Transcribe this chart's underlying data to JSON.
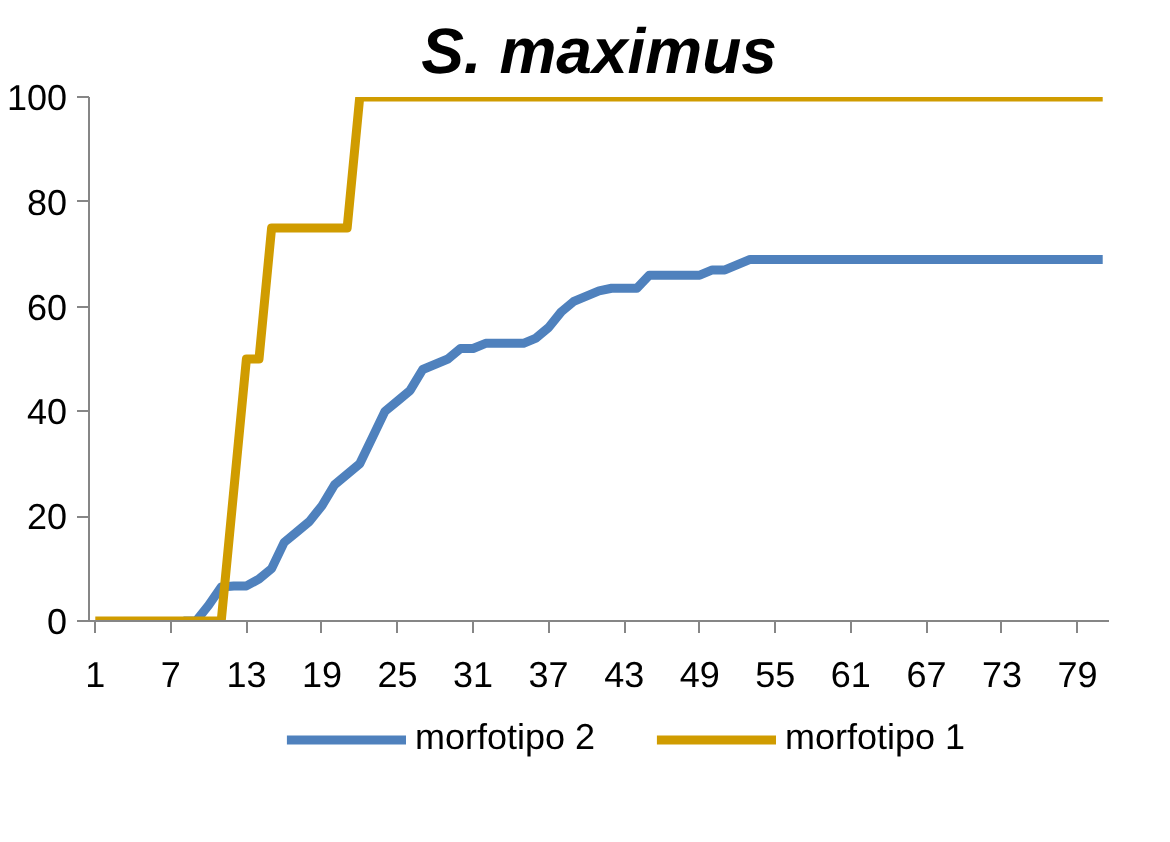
{
  "chart_data": {
    "type": "line",
    "title": "S. maximus",
    "categories": [
      "1",
      null,
      null,
      null,
      null,
      null,
      "7",
      null,
      null,
      null,
      null,
      null,
      "13",
      null,
      null,
      null,
      null,
      null,
      "19",
      null,
      null,
      null,
      null,
      null,
      "25",
      null,
      null,
      null,
      null,
      null,
      "31",
      null,
      null,
      null,
      null,
      null,
      "37",
      null,
      null,
      null,
      null,
      null,
      "43",
      null,
      null,
      null,
      null,
      null,
      "49",
      null,
      null,
      null,
      null,
      null,
      "55",
      null,
      null,
      null,
      null,
      null,
      "61",
      null,
      null,
      null,
      null,
      null,
      "67",
      null,
      null,
      null,
      null,
      null,
      "73",
      null,
      null,
      null,
      null,
      null,
      "79",
      null,
      null
    ],
    "series": [
      {
        "name": "morfotipo 2",
        "color": "#4f81bd",
        "values": [
          null,
          null,
          null,
          null,
          null,
          null,
          null,
          0,
          0,
          3,
          6.5,
          6.7,
          6.7,
          8,
          10,
          15,
          17,
          19,
          22,
          26,
          28,
          30,
          35,
          40,
          42,
          44,
          48,
          49,
          50,
          52,
          52,
          53,
          53,
          53,
          53,
          54,
          56,
          59,
          61,
          62,
          63,
          63.5,
          63.5,
          63.5,
          66,
          66,
          66,
          66,
          66,
          67,
          67,
          68,
          69,
          69,
          69,
          69,
          69,
          69,
          69,
          69,
          69,
          69,
          69,
          69,
          69,
          69,
          69,
          69,
          69,
          69,
          69,
          69,
          69,
          69,
          69,
          69,
          69,
          69,
          69,
          69,
          69
        ]
      },
      {
        "name": "morfotipo 1",
        "color": "#d09c00",
        "values": [
          0,
          0,
          0,
          0,
          0,
          0,
          0,
          0,
          0,
          0,
          0,
          25,
          50,
          50,
          75,
          75,
          75,
          75,
          75,
          75,
          75,
          100,
          100,
          100,
          100,
          100,
          100,
          100,
          100,
          100,
          100,
          100,
          100,
          100,
          100,
          100,
          100,
          100,
          100,
          100,
          100,
          100,
          100,
          100,
          100,
          100,
          100,
          100,
          100,
          100,
          100,
          100,
          100,
          100,
          100,
          100,
          100,
          100,
          100,
          100,
          100,
          100,
          100,
          100,
          100,
          100,
          100,
          100,
          100,
          100,
          100,
          100,
          100,
          100,
          100,
          100,
          100,
          100,
          100,
          100,
          100
        ]
      }
    ],
    "ylim": [
      0,
      100
    ],
    "yticks": [
      0,
      20,
      40,
      60,
      80,
      100
    ],
    "grid": false,
    "legend": "bottom",
    "marker": "none",
    "line_style": "solid"
  }
}
